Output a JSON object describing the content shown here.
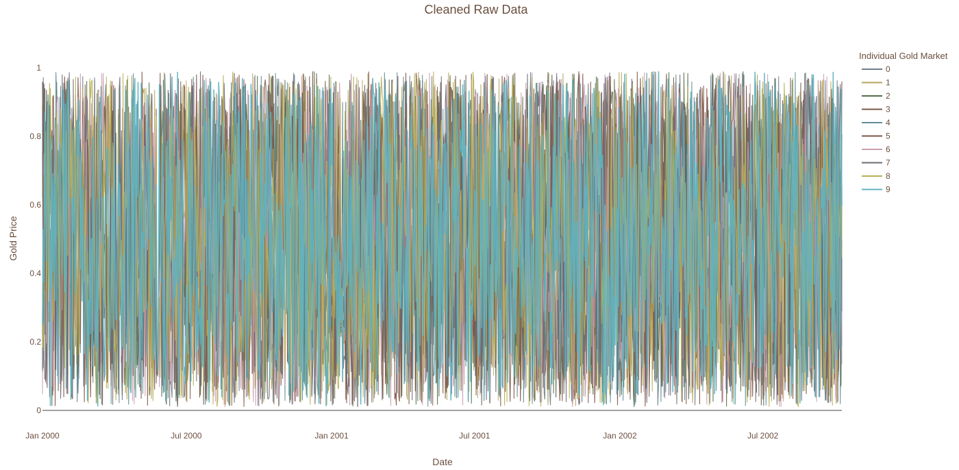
{
  "chart_data": {
    "type": "line",
    "title": "Cleaned Raw Data",
    "xlabel": "Date",
    "ylabel": "Gold Price",
    "x_ticks": [
      "Jan 2000",
      "Jul 2000",
      "Jan 2001",
      "Jul 2001",
      "Jan 2002",
      "Jul 2002"
    ],
    "x_tick_dates": [
      "2000-01-01",
      "2000-07-01",
      "2001-01-01",
      "2001-07-01",
      "2002-01-01",
      "2002-07-01"
    ],
    "x_range": [
      "2000-01-01",
      "2002-10-09"
    ],
    "y_ticks": [
      "0",
      "0.2",
      "0.4",
      "0.6",
      "0.8",
      "1"
    ],
    "ylim": [
      0,
      1
    ],
    "grid": false,
    "legend_title": "Individual Gold Market",
    "legend_position": "right",
    "series": [
      {
        "name": "0",
        "color": "#6b7f8a"
      },
      {
        "name": "1",
        "color": "#b5a65c"
      },
      {
        "name": "2",
        "color": "#566b4a"
      },
      {
        "name": "3",
        "color": "#7a5a48"
      },
      {
        "name": "4",
        "color": "#5f8d96"
      },
      {
        "name": "5",
        "color": "#7d5245"
      },
      {
        "name": "6",
        "color": "#c99fb0"
      },
      {
        "name": "7",
        "color": "#6e6a72"
      },
      {
        "name": "8",
        "color": "#b8b055"
      },
      {
        "name": "9",
        "color": "#5fb3c0"
      }
    ]
  }
}
